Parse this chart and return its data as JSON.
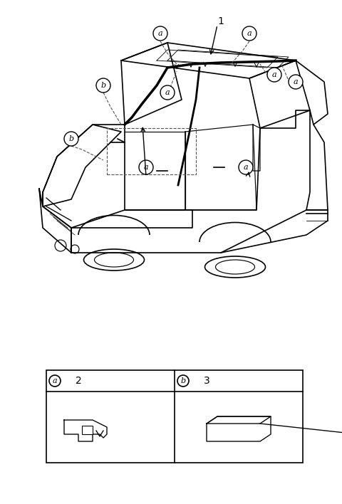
{
  "background_color": "#ffffff",
  "figure_width": 4.8,
  "figure_height": 7.08,
  "dpi": 100,
  "label_1": "1",
  "label_2": "2",
  "label_3": "3",
  "label_a": "a",
  "label_b": "b",
  "line_color": "#000000",
  "dashed_color": "#555555",
  "table_border_color": "#000000"
}
